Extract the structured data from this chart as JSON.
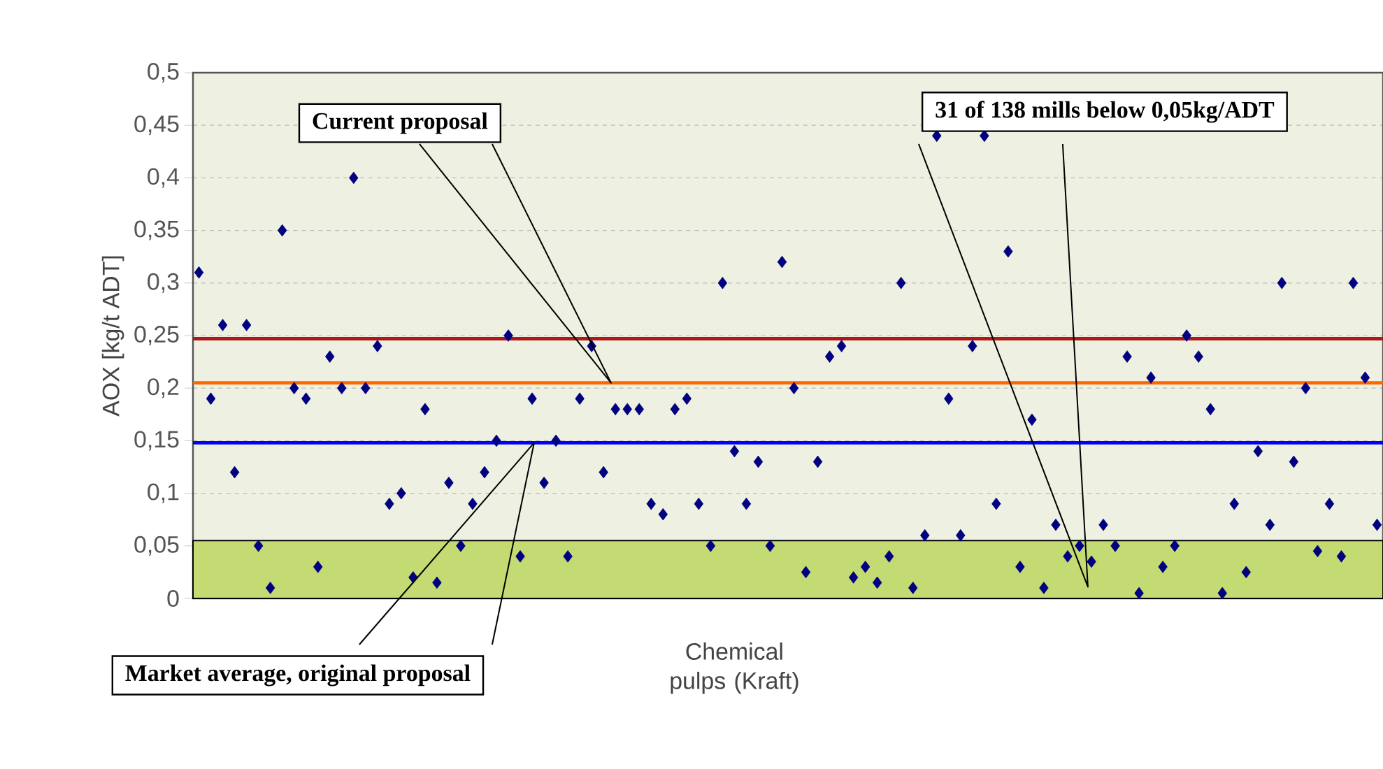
{
  "chart_data": {
    "type": "scatter",
    "ylabel": "AOX [kg/t ADT]",
    "xlabel": "Chemical pulps (Kraft)",
    "categories": [
      null,
      null,
      null,
      null,
      null,
      null,
      null,
      null,
      null,
      null,
      null,
      null,
      null,
      null,
      null,
      null,
      null,
      null,
      null,
      null,
      null,
      null,
      null,
      null,
      null,
      null,
      null,
      null,
      null,
      null,
      null,
      null,
      null,
      null,
      null,
      null,
      null,
      null,
      null,
      null,
      null,
      null,
      null,
      null,
      null,
      null,
      null,
      null,
      null,
      null,
      null,
      null,
      null,
      null,
      null,
      null,
      null,
      null,
      null,
      null,
      null,
      null,
      null,
      null,
      null,
      null,
      null,
      null,
      null,
      null,
      null,
      null,
      null,
      null,
      null,
      null,
      null,
      null,
      null,
      null,
      null,
      null,
      null,
      null,
      null,
      null,
      null,
      null,
      null,
      null,
      null,
      null,
      null,
      null,
      null,
      null,
      null,
      null,
      null,
      null
    ],
    "values": [
      0.31,
      0.19,
      0.26,
      0.12,
      0.26,
      0.05,
      0.01,
      0.35,
      0.2,
      0.19,
      0.03,
      0.23,
      0.2,
      0.4,
      0.2,
      0.24,
      0.09,
      0.1,
      0.02,
      0.18,
      0.015,
      0.11,
      0.05,
      0.09,
      0.12,
      0.15,
      0.25,
      0.04,
      0.19,
      0.11,
      0.15,
      0.04,
      0.19,
      0.24,
      0.12,
      0.18,
      0.18,
      0.18,
      0.09,
      0.08,
      0.18,
      0.19,
      0.09,
      0.05,
      0.3,
      0.14,
      0.09,
      0.13,
      0.05,
      0.32,
      0.2,
      0.025,
      0.13,
      0.23,
      0.24,
      0.02,
      0.03,
      0.015,
      0.04,
      0.3,
      0.01,
      0.06,
      0.44,
      0.19,
      0.06,
      0.24,
      0.44,
      0.09,
      0.33,
      0.03,
      0.17,
      0.01,
      0.07,
      0.04,
      0.05,
      0.035,
      0.07,
      0.05,
      0.23,
      0.005,
      0.21,
      0.03,
      0.05,
      0.25,
      0.23,
      0.18,
      0.005,
      0.09,
      0.025,
      0.14,
      0.07,
      0.3,
      0.13,
      0.2,
      0.045,
      0.09,
      0.04,
      0.3,
      0.21,
      0.07
    ],
    "color": "#000080",
    "marker": "diamond",
    "ylim": [
      0,
      0.5
    ],
    "yticks": [
      0,
      {
        "value": 0.05,
        "label": "0,05"
      },
      {
        "value": 0.1,
        "label": "0,1"
      },
      {
        "value": 0.15,
        "label": "0,15"
      },
      {
        "value": 0.2,
        "label": "0,2"
      },
      {
        "value": 0.25,
        "label": "0,25"
      },
      {
        "value": 0.3,
        "label": "0,3"
      },
      {
        "value": 0.35,
        "label": "0,35"
      },
      {
        "value": 0.4,
        "label": "0,4"
      },
      {
        "value": 0.45,
        "label": "0,45"
      },
      {
        "value": 0.5,
        "label": "0,5"
      }
    ],
    "grid": "y",
    "ref_lines": [
      {
        "axis": "y",
        "value": 0.247,
        "color": "#b01818"
      },
      {
        "axis": "y",
        "value": 0.205,
        "color": "#ff6600"
      },
      {
        "axis": "y",
        "value": 0.148,
        "color": "#0000ff"
      }
    ],
    "bands": [
      {
        "axis": "y",
        "from": 0,
        "to": 0.055,
        "color": "#c4da72"
      }
    ],
    "annotations": [
      "Current proposal",
      "Market average, original proposal",
      "31 of 138 mills below 0,05kg/ADT"
    ]
  }
}
